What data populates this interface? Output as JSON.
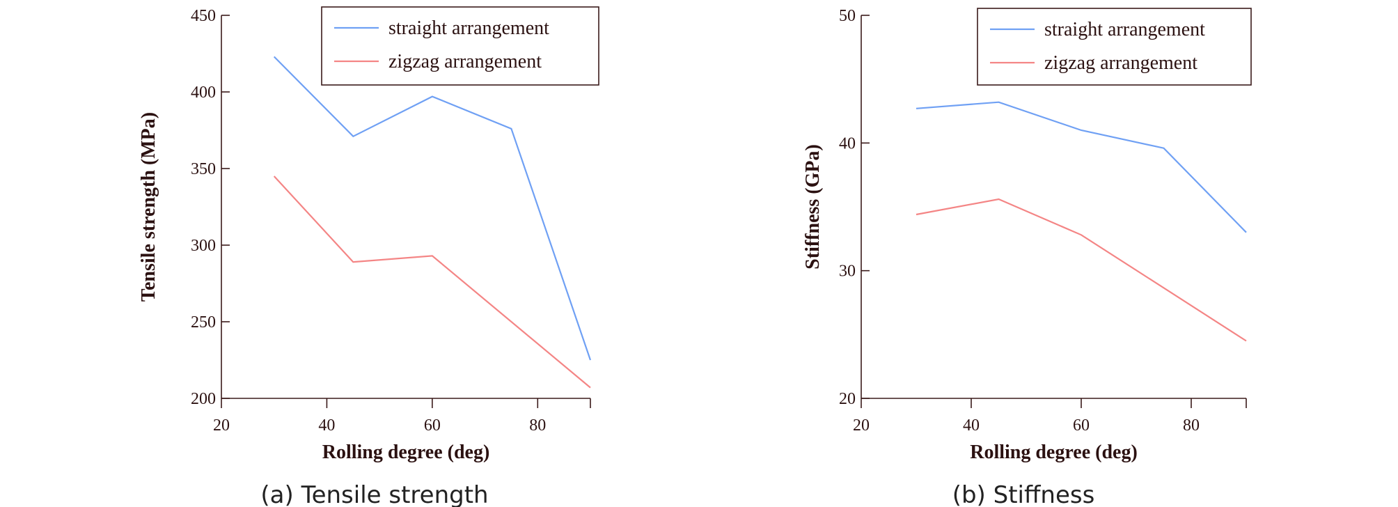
{
  "chart_data": [
    {
      "type": "line",
      "caption": "(a) Tensile strength",
      "xlabel": "Rolling degree (deg)",
      "ylabel": "Tensile strength (MPa)",
      "xlim": [
        20,
        90
      ],
      "ylim": [
        200,
        450
      ],
      "xticks": [
        20,
        40,
        60,
        80
      ],
      "yticks": [
        200,
        250,
        300,
        350,
        400,
        450
      ],
      "legend_position": "top-right",
      "series": [
        {
          "name": "straight arrangement",
          "color": "#6fa0f4",
          "x": [
            30,
            45,
            60,
            75,
            90
          ],
          "y": [
            423,
            371,
            397,
            376,
            225
          ]
        },
        {
          "name": "zigzag arrangement",
          "color": "#f48585",
          "x": [
            30,
            45,
            60,
            90
          ],
          "y": [
            345,
            289,
            293,
            207
          ]
        }
      ]
    },
    {
      "type": "line",
      "caption": "(b) Stiffness",
      "xlabel": "Rolling degree (deg)",
      "ylabel": "Stiffness (GPa)",
      "xlim": [
        20,
        90
      ],
      "ylim": [
        20,
        50
      ],
      "xticks": [
        20,
        40,
        60,
        80
      ],
      "yticks": [
        20,
        30,
        40,
        50
      ],
      "legend_position": "top-right",
      "series": [
        {
          "name": "straight arrangement",
          "color": "#6fa0f4",
          "x": [
            30,
            45,
            60,
            75,
            90
          ],
          "y": [
            42.7,
            43.2,
            41.0,
            39.6,
            33.0
          ]
        },
        {
          "name": "zigzag arrangement",
          "color": "#f48585",
          "x": [
            30,
            45,
            60,
            90
          ],
          "y": [
            34.4,
            35.6,
            32.8,
            24.5
          ]
        }
      ]
    }
  ]
}
